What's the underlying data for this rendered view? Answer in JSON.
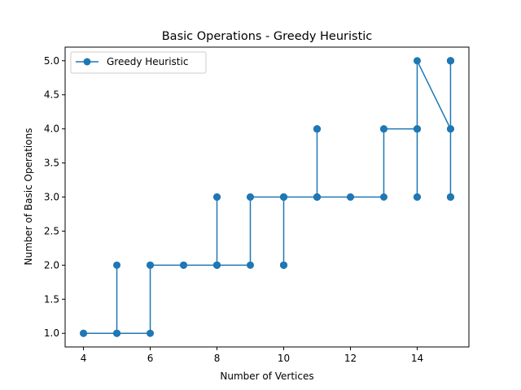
{
  "chart_data": {
    "type": "line",
    "title": "Basic Operations - Greedy Heuristic",
    "xlabel": "Number of Vertices",
    "ylabel": "Number of Basic Operations",
    "xlim": [
      3.45,
      15.55
    ],
    "ylim": [
      0.8,
      5.2
    ],
    "xticks": [
      4,
      6,
      8,
      10,
      12,
      14
    ],
    "yticks": [
      "1.0",
      "1.5",
      "2.0",
      "2.5",
      "3.0",
      "3.5",
      "4.0",
      "4.5",
      "5.0"
    ],
    "grid": false,
    "legend_position": "upper-left",
    "series": [
      {
        "name": "Greedy Heuristic",
        "color": "#1f77b4",
        "marker": "circle",
        "points": [
          [
            4,
            1
          ],
          [
            4,
            1
          ],
          [
            5,
            1
          ],
          [
            5,
            1
          ],
          [
            5,
            2
          ],
          [
            5,
            1
          ],
          [
            6,
            1
          ],
          [
            6,
            2
          ],
          [
            6,
            2
          ],
          [
            7,
            2
          ],
          [
            7,
            2
          ],
          [
            8,
            2
          ],
          [
            8,
            3
          ],
          [
            8,
            2
          ],
          [
            8,
            3
          ],
          [
            8,
            2
          ],
          [
            8,
            3
          ],
          [
            8,
            2
          ],
          [
            9,
            2
          ],
          [
            9,
            3
          ],
          [
            9,
            3
          ],
          [
            10,
            3
          ],
          [
            10,
            2
          ],
          [
            10,
            3
          ],
          [
            10,
            2
          ],
          [
            10,
            3
          ],
          [
            10,
            2
          ],
          [
            10,
            3
          ],
          [
            10,
            2
          ],
          [
            10,
            3
          ],
          [
            11,
            3
          ],
          [
            11,
            4
          ],
          [
            11,
            3
          ],
          [
            11,
            4
          ],
          [
            11,
            3
          ],
          [
            11,
            4
          ],
          [
            11,
            3
          ],
          [
            11,
            4
          ],
          [
            11,
            3
          ],
          [
            12,
            3
          ],
          [
            12,
            3
          ],
          [
            13,
            3
          ],
          [
            13,
            4
          ],
          [
            13,
            4
          ],
          [
            14,
            4
          ],
          [
            14,
            3
          ],
          [
            14,
            4
          ],
          [
            14,
            3
          ],
          [
            14,
            4
          ],
          [
            14,
            3
          ],
          [
            14,
            4
          ],
          [
            14,
            5
          ],
          [
            15,
            4
          ],
          [
            15,
            5
          ],
          [
            15,
            3
          ],
          [
            15,
            5
          ],
          [
            15,
            3
          ],
          [
            15,
            5
          ],
          [
            15,
            3
          ],
          [
            15,
            5
          ],
          [
            15,
            3
          ],
          [
            15,
            5
          ],
          [
            15,
            3
          ],
          [
            15,
            4
          ]
        ]
      }
    ]
  }
}
